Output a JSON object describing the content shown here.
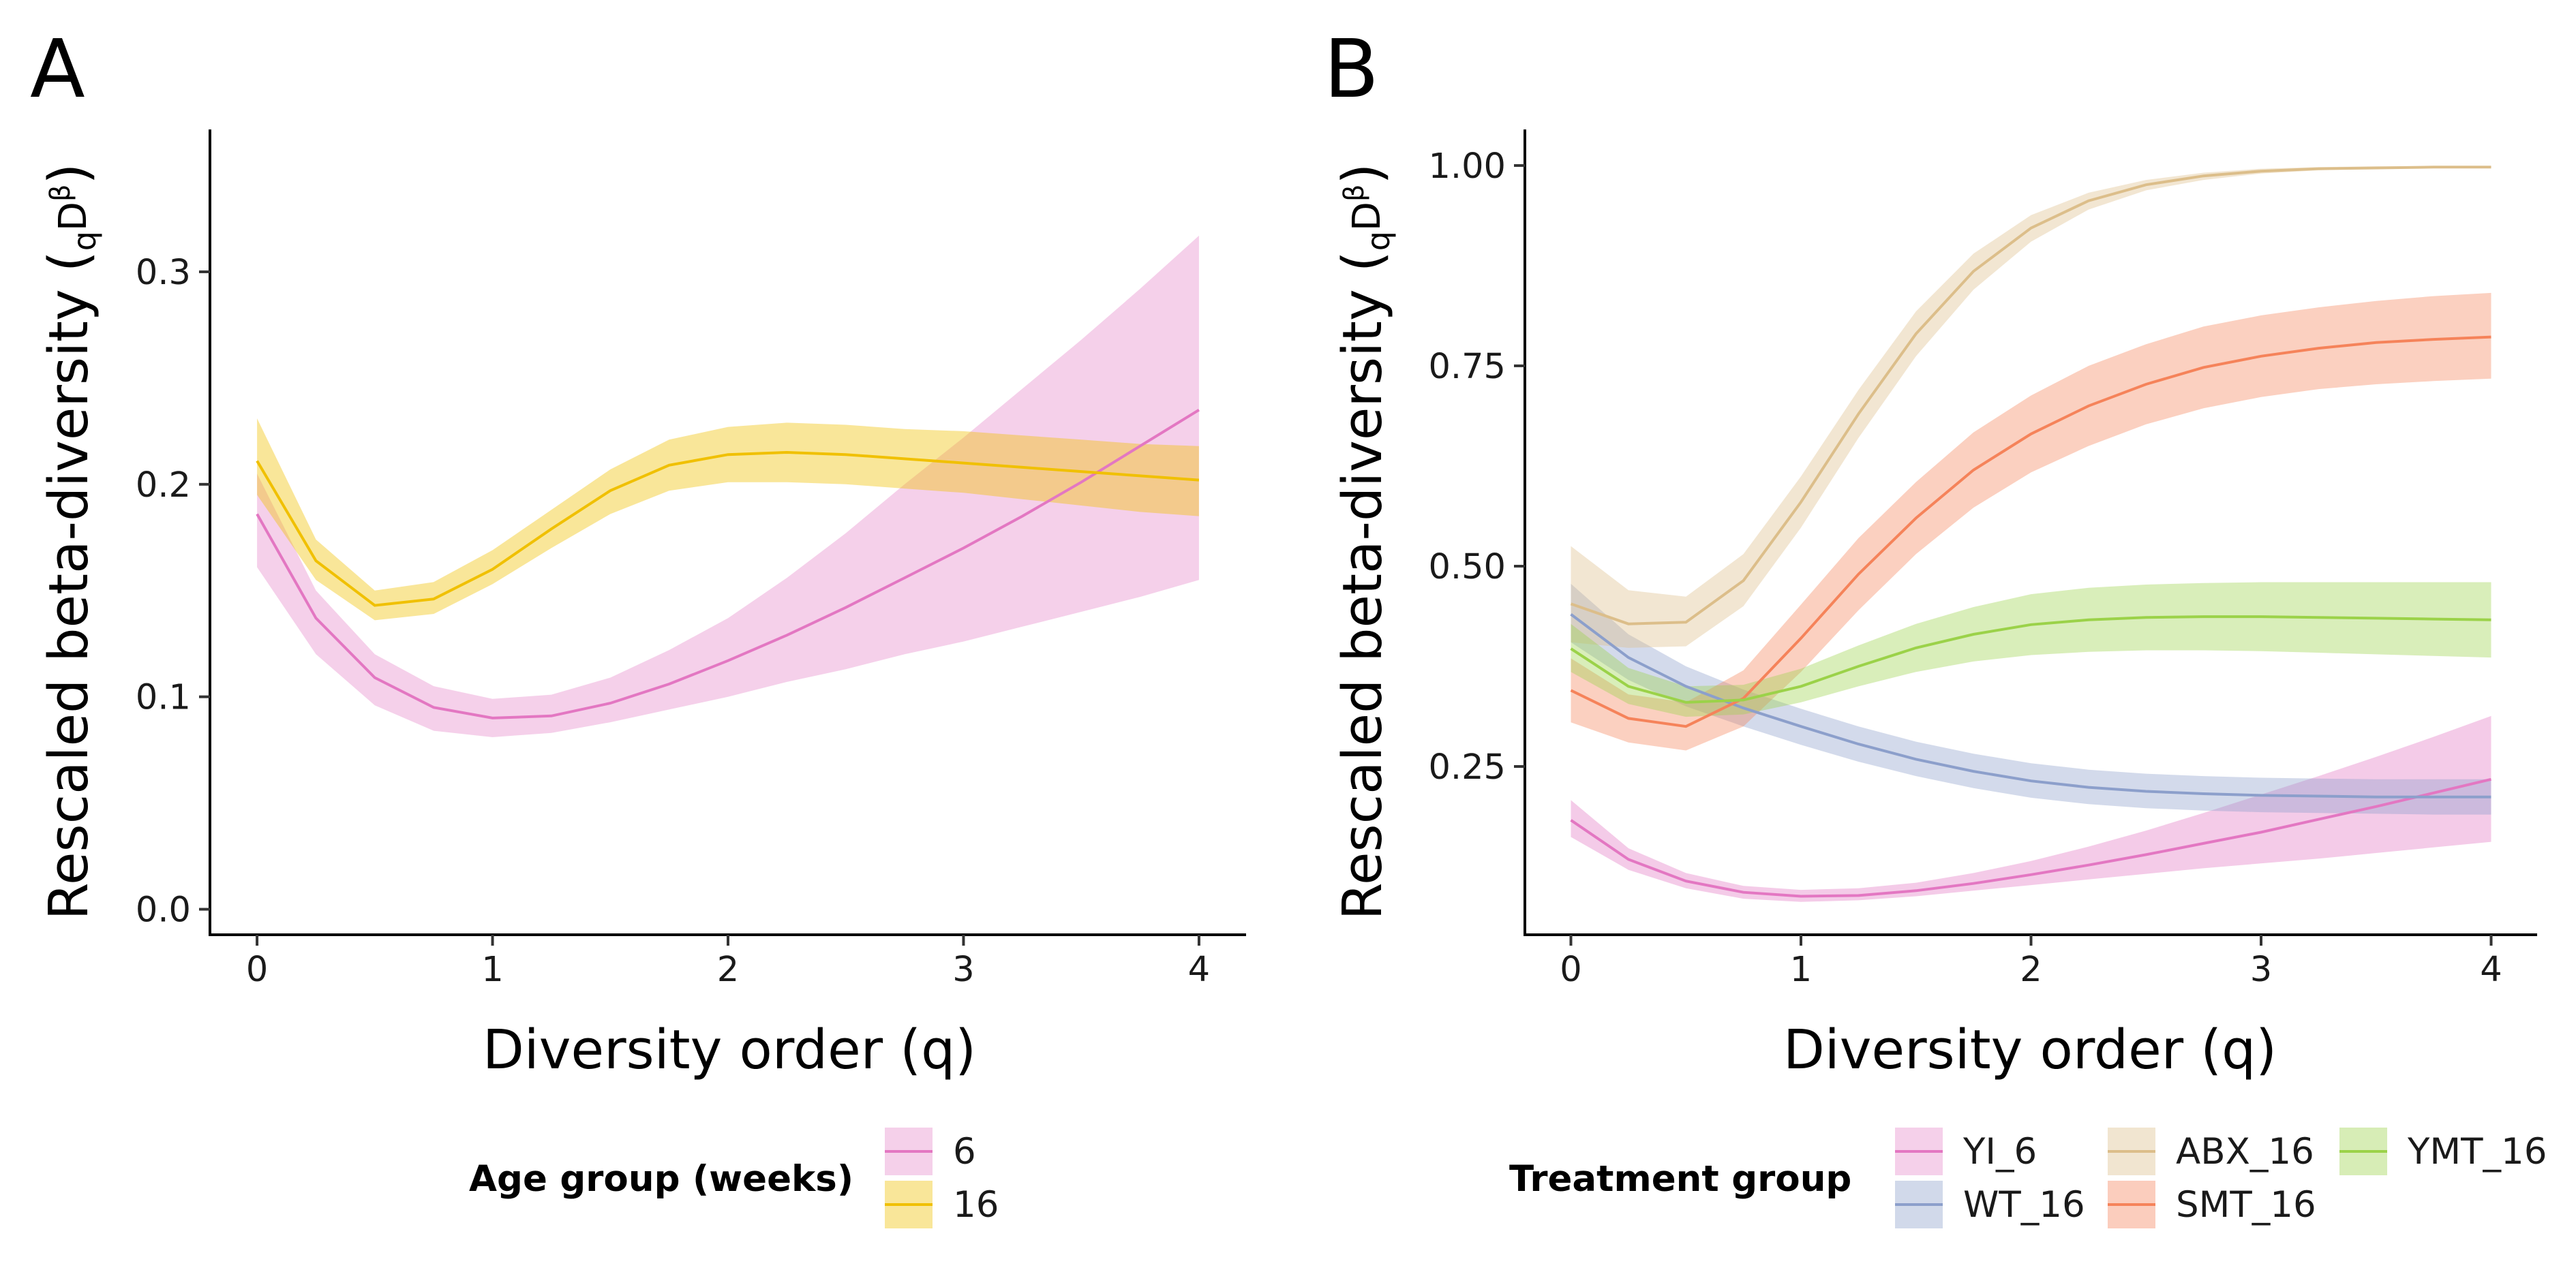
{
  "colors": {
    "6": "#e377c2",
    "16": "#f0c000",
    "YI_6": "#e377c2",
    "WT_16": "#8c9fcb",
    "ABX_16": "#dcbe8a",
    "SMT_16": "#f5835a",
    "YMT_16": "#9bd249"
  },
  "chart_data": [
    {
      "type": "line",
      "panel": "A",
      "xlabel": "Diversity order (q)",
      "ylabel_prefix": "Rescaled beta-diversity (",
      "ylabel_q": "q",
      "ylabel_D": "D",
      "ylabel_beta": "β",
      "ylabel_suffix": ")",
      "xlim": [
        -0.2,
        4.2
      ],
      "ylim": [
        -0.012,
        0.367
      ],
      "xticks": [
        0,
        1,
        2,
        3,
        4
      ],
      "xtick_labels": [
        "0",
        "1",
        "2",
        "3",
        "4"
      ],
      "yticks": [
        0.0,
        0.1,
        0.2,
        0.3
      ],
      "ytick_labels": [
        "0.0",
        "0.1",
        "0.2",
        "0.3"
      ],
      "grid": false,
      "legend": {
        "title": "Age group (weeks)",
        "position": "bottom"
      },
      "x": [
        0,
        0.25,
        0.5,
        0.75,
        1,
        1.25,
        1.5,
        1.75,
        2,
        2.25,
        2.5,
        2.75,
        3,
        3.25,
        3.5,
        3.75,
        4
      ],
      "series": [
        {
          "name": "6",
          "key": "6",
          "values": [
            0.186,
            0.137,
            0.109,
            0.095,
            0.09,
            0.091,
            0.097,
            0.106,
            0.117,
            0.129,
            0.142,
            0.156,
            0.17,
            0.185,
            0.201,
            0.218,
            0.235
          ],
          "lower": [
            0.161,
            0.12,
            0.096,
            0.084,
            0.081,
            0.083,
            0.088,
            0.094,
            0.1,
            0.107,
            0.113,
            0.12,
            0.126,
            0.133,
            0.14,
            0.147,
            0.155
          ],
          "upper": [
            0.205,
            0.15,
            0.12,
            0.105,
            0.099,
            0.101,
            0.109,
            0.122,
            0.137,
            0.156,
            0.177,
            0.2,
            0.222,
            0.245,
            0.268,
            0.292,
            0.317
          ]
        },
        {
          "name": "16",
          "key": "16",
          "values": [
            0.211,
            0.164,
            0.143,
            0.146,
            0.16,
            0.179,
            0.197,
            0.209,
            0.214,
            0.215,
            0.214,
            0.212,
            0.21,
            0.208,
            0.206,
            0.204,
            0.202
          ],
          "lower": [
            0.195,
            0.155,
            0.136,
            0.139,
            0.153,
            0.17,
            0.186,
            0.197,
            0.201,
            0.201,
            0.2,
            0.198,
            0.196,
            0.193,
            0.19,
            0.187,
            0.185
          ],
          "upper": [
            0.231,
            0.174,
            0.15,
            0.154,
            0.169,
            0.188,
            0.207,
            0.221,
            0.227,
            0.229,
            0.228,
            0.226,
            0.225,
            0.223,
            0.221,
            0.219,
            0.218
          ]
        }
      ]
    },
    {
      "type": "line",
      "panel": "B",
      "xlabel": "Diversity order (q)",
      "ylabel_prefix": "Rescaled beta-diversity (",
      "ylabel_q": "q",
      "ylabel_D": "D",
      "ylabel_beta": "β",
      "ylabel_suffix": ")",
      "xlim": [
        -0.2,
        4.2
      ],
      "ylim": [
        0.04,
        1.045
      ],
      "xticks": [
        0,
        1,
        2,
        3,
        4
      ],
      "xtick_labels": [
        "0",
        "1",
        "2",
        "3",
        "4"
      ],
      "yticks": [
        0.25,
        0.5,
        0.75,
        1.0
      ],
      "ytick_labels": [
        "0.25",
        "0.50",
        "0.75",
        "1.00"
      ],
      "grid": false,
      "legend": {
        "title": "Treatment group",
        "position": "bottom"
      },
      "x": [
        0,
        0.25,
        0.5,
        0.75,
        1,
        1.25,
        1.5,
        1.75,
        2,
        2.25,
        2.5,
        2.75,
        3,
        3.25,
        3.5,
        3.75,
        4
      ],
      "series": [
        {
          "name": "YI_6",
          "key": "YI_6",
          "values": [
            0.183,
            0.134,
            0.107,
            0.093,
            0.088,
            0.089,
            0.095,
            0.104,
            0.115,
            0.127,
            0.14,
            0.154,
            0.168,
            0.184,
            0.2,
            0.217,
            0.234
          ],
          "lower": [
            0.162,
            0.121,
            0.098,
            0.085,
            0.081,
            0.083,
            0.088,
            0.095,
            0.102,
            0.109,
            0.116,
            0.123,
            0.129,
            0.135,
            0.142,
            0.149,
            0.156
          ],
          "upper": [
            0.208,
            0.148,
            0.117,
            0.101,
            0.096,
            0.098,
            0.105,
            0.117,
            0.132,
            0.15,
            0.17,
            0.192,
            0.215,
            0.238,
            0.262,
            0.287,
            0.313
          ]
        },
        {
          "name": "WT_16",
          "key": "WT_16",
          "values": [
            0.44,
            0.386,
            0.35,
            0.323,
            0.3,
            0.278,
            0.259,
            0.244,
            0.232,
            0.224,
            0.219,
            0.216,
            0.214,
            0.213,
            0.212,
            0.212,
            0.212
          ],
          "lower": [
            0.405,
            0.358,
            0.325,
            0.3,
            0.277,
            0.256,
            0.238,
            0.223,
            0.211,
            0.203,
            0.198,
            0.195,
            0.193,
            0.192,
            0.191,
            0.19,
            0.19
          ],
          "upper": [
            0.478,
            0.415,
            0.375,
            0.346,
            0.322,
            0.3,
            0.281,
            0.266,
            0.254,
            0.246,
            0.241,
            0.238,
            0.236,
            0.235,
            0.234,
            0.234,
            0.234
          ]
        },
        {
          "name": "ABX_16",
          "key": "ABX_16",
          "values": [
            0.453,
            0.428,
            0.43,
            0.482,
            0.58,
            0.69,
            0.79,
            0.868,
            0.922,
            0.956,
            0.976,
            0.987,
            0.993,
            0.996,
            0.997,
            0.998,
            0.998
          ],
          "lower": [
            0.405,
            0.398,
            0.4,
            0.45,
            0.548,
            0.66,
            0.762,
            0.845,
            0.905,
            0.945,
            0.969,
            0.982,
            0.99,
            0.994,
            0.996,
            0.997,
            0.997
          ],
          "upper": [
            0.525,
            0.47,
            0.462,
            0.515,
            0.612,
            0.72,
            0.818,
            0.89,
            0.938,
            0.966,
            0.982,
            0.991,
            0.996,
            0.998,
            0.999,
            0.999,
            0.999
          ]
        },
        {
          "name": "SMT_16",
          "key": "SMT_16",
          "values": [
            0.345,
            0.31,
            0.3,
            0.335,
            0.41,
            0.49,
            0.56,
            0.62,
            0.665,
            0.7,
            0.727,
            0.748,
            0.762,
            0.772,
            0.779,
            0.783,
            0.786
          ],
          "lower": [
            0.305,
            0.28,
            0.27,
            0.3,
            0.368,
            0.445,
            0.515,
            0.573,
            0.617,
            0.65,
            0.677,
            0.697,
            0.711,
            0.721,
            0.727,
            0.731,
            0.734
          ],
          "upper": [
            0.385,
            0.34,
            0.33,
            0.37,
            0.452,
            0.535,
            0.605,
            0.667,
            0.713,
            0.75,
            0.777,
            0.799,
            0.813,
            0.823,
            0.831,
            0.837,
            0.841
          ]
        },
        {
          "name": "YMT_16",
          "key": "YMT_16",
          "values": [
            0.397,
            0.35,
            0.33,
            0.333,
            0.35,
            0.375,
            0.398,
            0.415,
            0.427,
            0.433,
            0.436,
            0.437,
            0.437,
            0.436,
            0.435,
            0.434,
            0.433
          ],
          "lower": [
            0.368,
            0.328,
            0.312,
            0.315,
            0.33,
            0.35,
            0.368,
            0.381,
            0.389,
            0.393,
            0.395,
            0.395,
            0.394,
            0.392,
            0.39,
            0.388,
            0.386
          ],
          "upper": [
            0.428,
            0.373,
            0.35,
            0.352,
            0.372,
            0.401,
            0.428,
            0.449,
            0.465,
            0.473,
            0.477,
            0.479,
            0.48,
            0.48,
            0.48,
            0.48,
            0.48
          ]
        }
      ]
    }
  ]
}
